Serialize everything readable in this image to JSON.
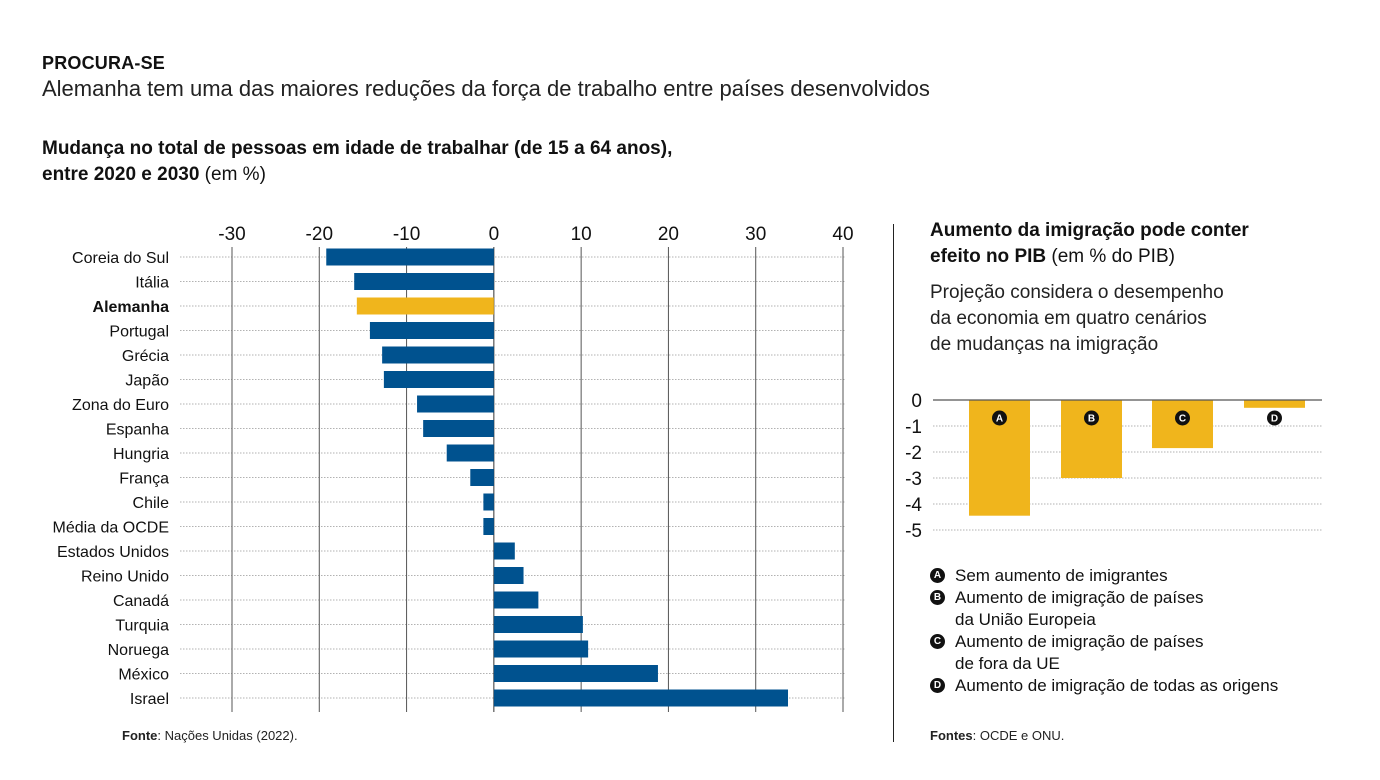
{
  "header": {
    "kicker": "PROCURA-SE",
    "headline": "Alemanha tem uma das maiores reduções da força de trabalho entre países desenvolvidos"
  },
  "left_panel": {
    "subtitle_bold_1": "Mudança no total de pessoas em idade de trabalhar (de 15 a 64 anos),",
    "subtitle_bold_2": "entre 2020 e 2030",
    "subtitle_unit": " (em %)",
    "source_label": "Fonte",
    "source_text": ": Nações Unidas (2022)."
  },
  "right_panel": {
    "title_bold_1": "Aumento da imigração pode conter",
    "title_bold_2": "efeito no PIB",
    "title_unit": " (em % do PIB)",
    "description": "Projeção considera o desempenho da economia em quatro cenários de mudanças na imigração",
    "description_lines": [
      "Projeção considera o desempenho",
      "da economia em quatro cenários",
      "de mudanças na imigração"
    ],
    "legend": [
      {
        "badge": "A",
        "text": "Sem aumento de imigrantes"
      },
      {
        "badge": "B",
        "text": "Aumento de imigração de países\nda União Europeia"
      },
      {
        "badge": "C",
        "text": "Aumento de imigração de países\nde fora da UE"
      },
      {
        "badge": "D",
        "text": "Aumento de imigração de todas as origens"
      }
    ],
    "source_label": "Fontes",
    "source_text": ": OCDE e ONU."
  },
  "colors": {
    "bar": "#00528f",
    "highlight": "#f0b51c",
    "grid": "#999999",
    "axis": "#555555",
    "text": "#111111"
  },
  "chart_data": [
    {
      "type": "bar",
      "orientation": "horizontal",
      "title": "Mudança no total de pessoas em idade de trabalhar (de 15 a 64 anos), entre 2020 e 2030 (em %)",
      "xlabel": "",
      "ylabel": "",
      "xlim": [
        -30,
        40
      ],
      "xticks": [
        -30,
        -20,
        -10,
        0,
        10,
        20,
        30,
        40
      ],
      "grid": true,
      "axis_position": "top",
      "highlight": "Alemanha",
      "categories": [
        "Coreia do Sul",
        "Itália",
        "Alemanha",
        "Portugal",
        "Grécia",
        "Japão",
        "Zona do Euro",
        "Espanha",
        "Hungria",
        "França",
        "Chile",
        "Média da OCDE",
        "Estados Unidos",
        "Reino Unido",
        "Canadá",
        "Turquia",
        "Noruega",
        "México",
        "Israel"
      ],
      "values": [
        -19.2,
        -16.0,
        -15.7,
        -14.2,
        -12.8,
        -12.6,
        -8.8,
        -8.1,
        -5.4,
        -2.7,
        -1.2,
        -1.2,
        2.4,
        3.4,
        5.1,
        10.2,
        10.8,
        18.8,
        33.7
      ]
    },
    {
      "type": "bar",
      "orientation": "vertical",
      "title": "Aumento da imigração pode conter efeito no PIB (em % do PIB)",
      "xlabel": "",
      "ylabel": "",
      "ylim": [
        -5,
        0
      ],
      "yticks": [
        0,
        -1,
        -2,
        -3,
        -4,
        -5
      ],
      "grid": true,
      "legend_position": "bottom",
      "categories": [
        "A",
        "B",
        "C",
        "D"
      ],
      "values": [
        -4.45,
        -3.0,
        -1.85,
        -0.3
      ]
    }
  ]
}
